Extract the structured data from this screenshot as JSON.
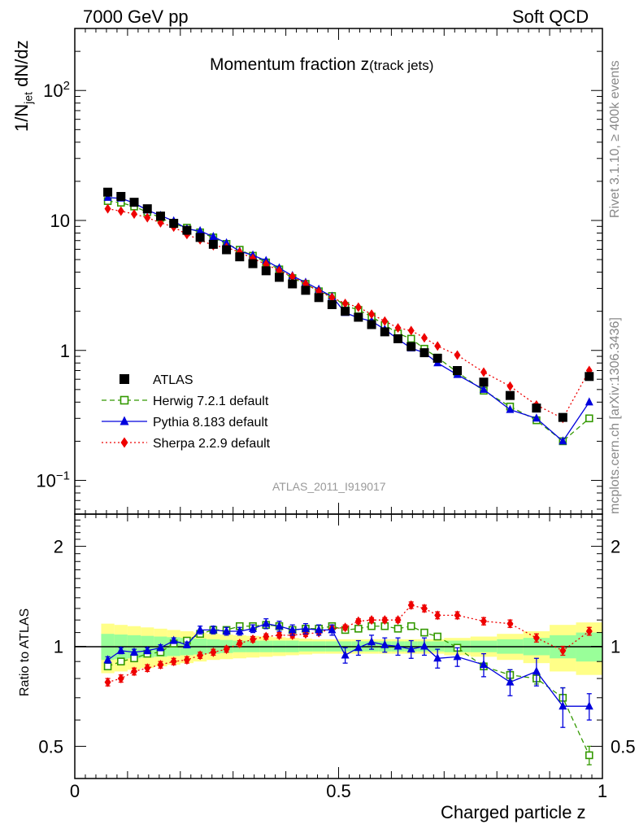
{
  "header": {
    "left": "7000 GeV pp",
    "right": "Soft QCD"
  },
  "side_text": {
    "rivet": "Rivet 3.1.10, ≥ 400k events",
    "mcplots": "mcplots.cern.ch [arXiv:1306.3436]"
  },
  "analysis_id": "ATLAS_2011_I919017",
  "colors": {
    "data": "#000000",
    "herwig": "#339900",
    "pythia": "#0000dd",
    "sherpa": "#ee0000",
    "band_inner": "#99ff99",
    "band_outer": "#ffff88"
  },
  "chart_data": [
    {
      "type": "scatter",
      "panel": "main",
      "title_main": "Momentum fraction ",
      "title_z": "z",
      "title_sub": "(track jets)",
      "ylabel": "1/N",
      "ylabel_sub": "jet",
      "ylabel_rest": " dN/dz",
      "yscale": "log",
      "ylim": [
        0.055,
        300
      ],
      "xlim": [
        0,
        1.0
      ],
      "ytick_labels": [
        {
          "value": 100,
          "base": "10",
          "exp": "2"
        },
        {
          "value": 10,
          "base": "10",
          "exp": ""
        },
        {
          "value": 1,
          "base": "1",
          "exp": ""
        },
        {
          "value": 0.1,
          "base": "10",
          "exp": "−1"
        }
      ],
      "x": [
        0.0625,
        0.0875,
        0.1125,
        0.1375,
        0.1625,
        0.1875,
        0.2125,
        0.2375,
        0.2625,
        0.2875,
        0.3125,
        0.3375,
        0.3625,
        0.3875,
        0.4125,
        0.4375,
        0.4625,
        0.4875,
        0.5125,
        0.5375,
        0.5625,
        0.5875,
        0.6125,
        0.6375,
        0.6625,
        0.6875,
        0.725,
        0.775,
        0.825,
        0.875,
        0.925,
        0.975
      ],
      "series": [
        {
          "name": "ATLAS",
          "key": "data",
          "marker": "square",
          "values": [
            16.5,
            15.3,
            13.8,
            12.3,
            10.8,
            9.5,
            8.4,
            7.4,
            6.55,
            5.95,
            5.25,
            4.65,
            4.1,
            3.65,
            3.25,
            2.9,
            2.55,
            2.25,
            2.0,
            1.8,
            1.58,
            1.39,
            1.23,
            1.07,
            0.96,
            0.87,
            0.7,
            0.57,
            0.45,
            0.36,
            0.305,
            0.63
          ]
        },
        {
          "name": "Herwig 7.2.1 default",
          "key": "herwig",
          "marker": "open-square",
          "line": "dashed",
          "values": [
            14.1,
            13.7,
            12.8,
            11.6,
            10.5,
            9.4,
            8.8,
            8.1,
            7.4,
            6.6,
            5.95,
            5.35,
            4.75,
            4.2,
            3.6,
            3.25,
            2.85,
            2.62,
            2.2,
            2.05,
            1.82,
            1.57,
            1.35,
            1.23,
            1.03,
            0.88,
            0.68,
            0.49,
            0.37,
            0.29,
            0.2,
            0.3
          ]
        },
        {
          "name": "Pythia 8.183 default",
          "key": "pythia",
          "marker": "triangle",
          "line": "solid",
          "values": [
            15.0,
            14.8,
            13.6,
            12.0,
            10.9,
            9.9,
            8.6,
            8.3,
            7.5,
            6.7,
            5.8,
            5.4,
            4.9,
            4.3,
            3.75,
            3.33,
            2.95,
            2.6,
            1.95,
            1.78,
            1.68,
            1.45,
            1.22,
            1.04,
            0.96,
            0.8,
            0.65,
            0.5,
            0.35,
            0.3,
            0.2,
            0.4
          ]
        },
        {
          "name": "Sherpa 2.2.9 default",
          "key": "sherpa",
          "marker": "diamond",
          "line": "dotted",
          "values": [
            12.3,
            11.8,
            11.2,
            10.5,
            9.6,
            8.9,
            7.8,
            7.1,
            6.4,
            6.2,
            5.7,
            5.1,
            4.6,
            4.1,
            3.7,
            3.25,
            2.85,
            2.55,
            2.3,
            2.15,
            1.9,
            1.68,
            1.49,
            1.42,
            1.25,
            1.08,
            0.92,
            0.68,
            0.53,
            0.38,
            0.3,
            0.7
          ]
        }
      ],
      "legend": {
        "placement": "lower-left",
        "entries": [
          "ATLAS",
          "Herwig 7.2.1 default",
          "Pythia 8.183 default",
          "Sherpa 2.2.9 default"
        ]
      }
    },
    {
      "type": "line",
      "panel": "ratio",
      "ylabel": "Ratio to ATLAS",
      "xlabel": "Charged particle z",
      "yscale": "log",
      "ylim": [
        0.4,
        2.5
      ],
      "xlim": [
        0,
        1.0
      ],
      "ytick_labels": [
        {
          "value": 2,
          "label": "2"
        },
        {
          "value": 1,
          "label": "1"
        },
        {
          "value": 0.5,
          "label": "0.5"
        }
      ],
      "xtick_labels": [
        {
          "value": 0,
          "label": "0"
        },
        {
          "value": 0.5,
          "label": "0.5"
        },
        {
          "value": 1,
          "label": "1"
        }
      ],
      "reference": 1.0,
      "bin_edges": [
        0.05,
        0.075,
        0.1,
        0.125,
        0.15,
        0.175,
        0.2,
        0.225,
        0.25,
        0.275,
        0.3,
        0.325,
        0.35,
        0.375,
        0.4,
        0.425,
        0.45,
        0.475,
        0.5,
        0.525,
        0.55,
        0.575,
        0.6,
        0.625,
        0.65,
        0.675,
        0.7,
        0.75,
        0.8,
        0.85,
        0.9,
        0.95,
        1.0
      ],
      "band_inner": [
        0.09,
        0.085,
        0.08,
        0.075,
        0.07,
        0.065,
        0.06,
        0.055,
        0.05,
        0.045,
        0.04,
        0.04,
        0.04,
        0.04,
        0.04,
        0.035,
        0.035,
        0.035,
        0.035,
        0.035,
        0.035,
        0.035,
        0.035,
        0.035,
        0.035,
        0.035,
        0.04,
        0.04,
        0.05,
        0.06,
        0.08,
        0.1
      ],
      "band_outer": [
        0.17,
        0.16,
        0.15,
        0.14,
        0.13,
        0.12,
        0.11,
        0.1,
        0.09,
        0.085,
        0.08,
        0.075,
        0.07,
        0.065,
        0.06,
        0.055,
        0.05,
        0.05,
        0.05,
        0.05,
        0.05,
        0.05,
        0.05,
        0.05,
        0.05,
        0.05,
        0.06,
        0.07,
        0.09,
        0.11,
        0.16,
        0.18
      ],
      "x": [
        0.0625,
        0.0875,
        0.1125,
        0.1375,
        0.1625,
        0.1875,
        0.2125,
        0.2375,
        0.2625,
        0.2875,
        0.3125,
        0.3375,
        0.3625,
        0.3875,
        0.4125,
        0.4375,
        0.4625,
        0.4875,
        0.5125,
        0.5375,
        0.5625,
        0.5875,
        0.6125,
        0.6375,
        0.6625,
        0.6875,
        0.725,
        0.775,
        0.825,
        0.875,
        0.925,
        0.975
      ],
      "series": [
        {
          "name": "Herwig 7.2.1 default",
          "key": "herwig",
          "marker": "open-square",
          "line": "dashed",
          "values": [
            0.87,
            0.9,
            0.92,
            0.95,
            0.96,
            1.02,
            1.04,
            1.09,
            1.12,
            1.12,
            1.15,
            1.15,
            1.16,
            1.15,
            1.12,
            1.13,
            1.13,
            1.15,
            1.12,
            1.13,
            1.15,
            1.15,
            1.13,
            1.15,
            1.1,
            1.07,
            0.99,
            0.87,
            0.82,
            0.8,
            0.7,
            0.47
          ],
          "errors": [
            0.02,
            0.02,
            0.02,
            0.02,
            0.02,
            0.02,
            0.02,
            0.02,
            0.02,
            0.02,
            0.02,
            0.02,
            0.02,
            0.02,
            0.02,
            0.02,
            0.02,
            0.02,
            0.02,
            0.02,
            0.02,
            0.02,
            0.02,
            0.02,
            0.02,
            0.02,
            0.02,
            0.02,
            0.03,
            0.03,
            0.05,
            0.03
          ]
        },
        {
          "name": "Pythia 8.183 default",
          "key": "pythia",
          "marker": "triangle",
          "line": "solid",
          "values": [
            0.91,
            0.97,
            0.96,
            0.97,
            0.99,
            1.04,
            1.01,
            1.12,
            1.12,
            1.11,
            1.11,
            1.13,
            1.17,
            1.15,
            1.12,
            1.13,
            1.12,
            1.12,
            0.94,
            0.99,
            1.03,
            1.01,
            1.0,
            0.98,
            1.0,
            0.92,
            0.93,
            0.88,
            0.78,
            0.84,
            0.66,
            0.66
          ],
          "errors": [
            0.02,
            0.02,
            0.02,
            0.02,
            0.02,
            0.02,
            0.02,
            0.03,
            0.03,
            0.03,
            0.03,
            0.03,
            0.04,
            0.04,
            0.04,
            0.04,
            0.04,
            0.04,
            0.05,
            0.05,
            0.05,
            0.05,
            0.06,
            0.06,
            0.06,
            0.06,
            0.06,
            0.07,
            0.07,
            0.08,
            0.09,
            0.06
          ]
        },
        {
          "name": "Sherpa 2.2.9 default",
          "key": "sherpa",
          "marker": "diamond",
          "line": "dotted",
          "values": [
            0.78,
            0.8,
            0.84,
            0.86,
            0.88,
            0.9,
            0.91,
            0.94,
            0.96,
            0.98,
            1.02,
            1.05,
            1.07,
            1.08,
            1.08,
            1.09,
            1.1,
            1.13,
            1.14,
            1.19,
            1.2,
            1.2,
            1.2,
            1.33,
            1.3,
            1.24,
            1.24,
            1.19,
            1.17,
            1.06,
            0.97,
            1.11
          ],
          "errors": [
            0.02,
            0.02,
            0.02,
            0.02,
            0.02,
            0.02,
            0.02,
            0.02,
            0.02,
            0.02,
            0.02,
            0.02,
            0.02,
            0.02,
            0.02,
            0.02,
            0.02,
            0.02,
            0.02,
            0.02,
            0.02,
            0.02,
            0.02,
            0.03,
            0.03,
            0.03,
            0.03,
            0.03,
            0.03,
            0.03,
            0.03,
            0.03
          ]
        }
      ]
    }
  ]
}
